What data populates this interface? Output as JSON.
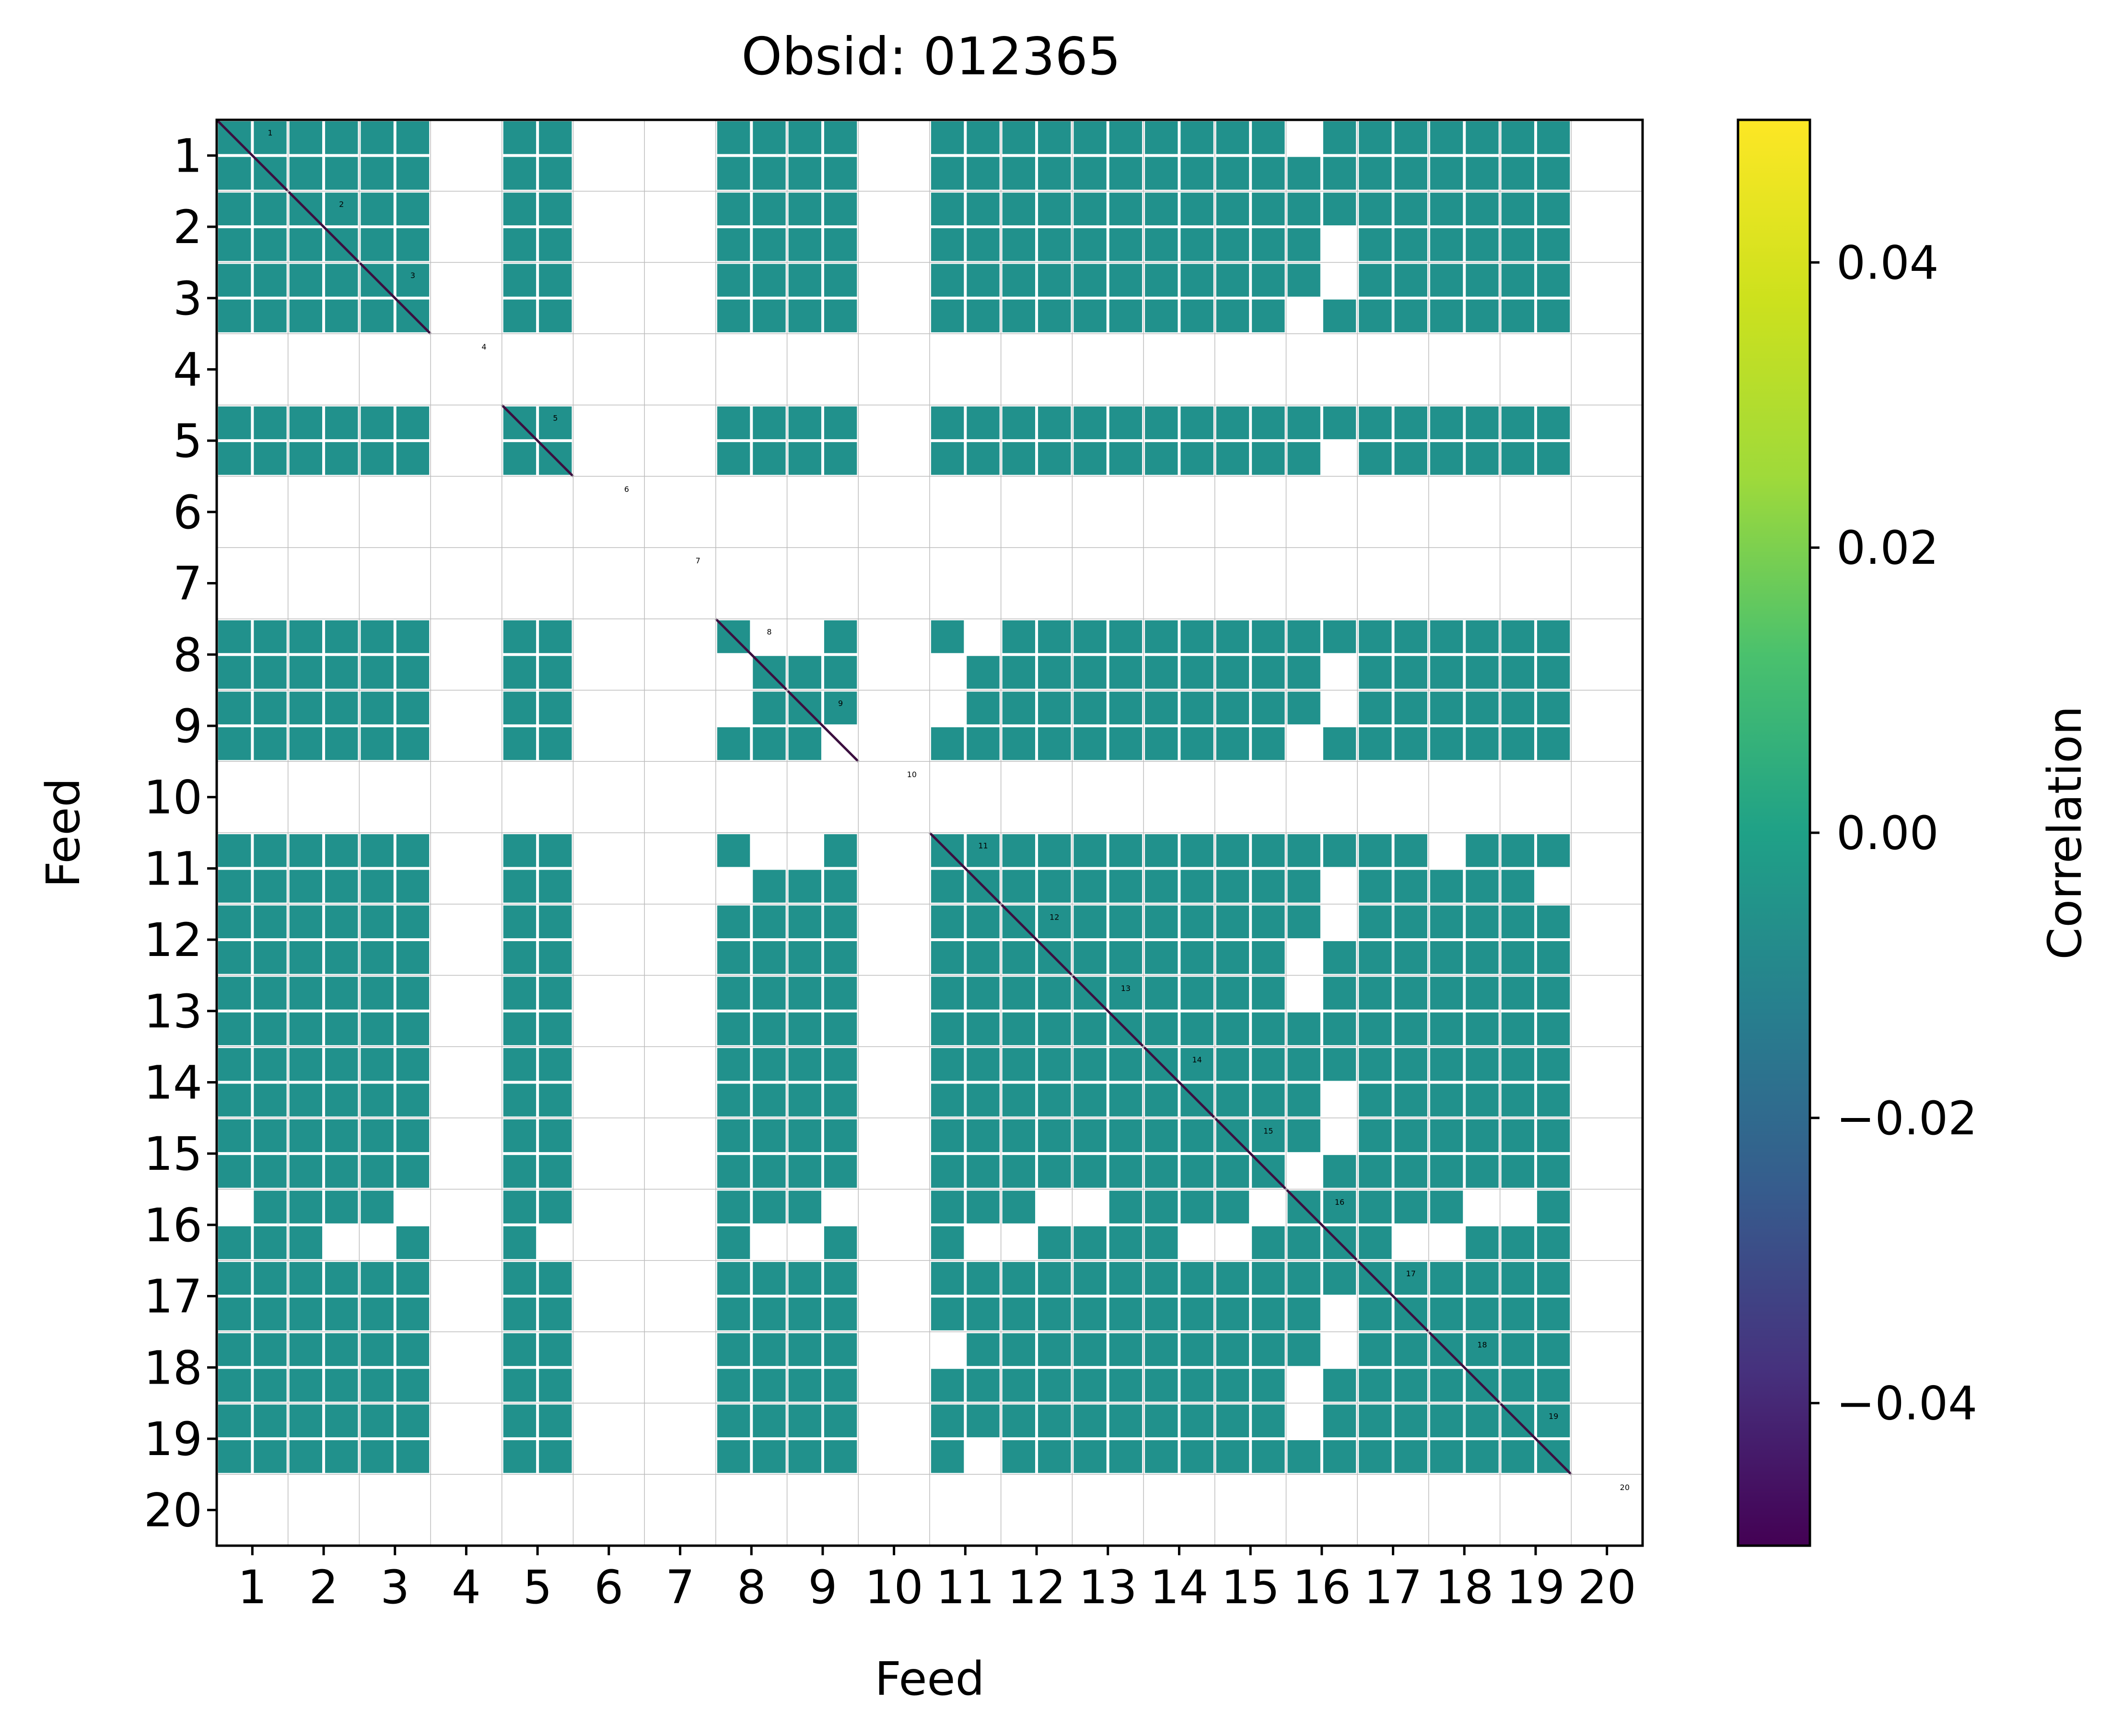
{
  "chart_data": {
    "type": "heatmap",
    "title": "Obsid: 012365",
    "xlabel": "Feed",
    "ylabel": "Feed",
    "x_ticks": [
      "1",
      "2",
      "3",
      "4",
      "5",
      "6",
      "7",
      "8",
      "9",
      "10",
      "11",
      "12",
      "13",
      "14",
      "15",
      "16",
      "17",
      "18",
      "19",
      "20"
    ],
    "y_ticks": [
      "1",
      "2",
      "3",
      "4",
      "5",
      "6",
      "7",
      "8",
      "9",
      "10",
      "11",
      "12",
      "13",
      "14",
      "15",
      "16",
      "17",
      "18",
      "19",
      "20"
    ],
    "feeds": [
      1,
      2,
      3,
      4,
      5,
      6,
      7,
      8,
      9,
      10,
      11,
      12,
      13,
      14,
      15,
      16,
      17,
      18,
      19,
      20
    ],
    "feeds_present": [
      1,
      2,
      3,
      5,
      8,
      9,
      11,
      12,
      13,
      14,
      15,
      16,
      17,
      18,
      19
    ],
    "feeds_masked": [
      4,
      6,
      7,
      10,
      20
    ],
    "cell_value": 0.0,
    "diagonal_value": -0.05,
    "partial_masks": [
      {
        "rows": [
          8,
          9
        ],
        "cols": [
          8,
          9,
          11
        ],
        "note": "blocks partially masked"
      },
      {
        "rows": [
          11
        ],
        "cols": [
          8,
          9,
          18,
          19
        ],
        "note": "blocks partially masked"
      },
      {
        "rows": [
          16
        ],
        "cols": [
          1,
          2,
          3,
          5,
          8,
          9,
          11,
          12,
          13,
          14,
          15,
          17,
          18,
          19
        ],
        "note": "many sideband rows masked"
      },
      {
        "rows": [
          19
        ],
        "cols": [
          11
        ],
        "note": "block masked"
      }
    ],
    "diagonal_labels": [
      "1",
      "2",
      "3",
      "4",
      "5",
      "6",
      "7",
      "8",
      "9",
      "10",
      "11",
      "12",
      "13",
      "14",
      "15",
      "16",
      "17",
      "18",
      "19",
      "20"
    ],
    "colorbar": {
      "label": "Correlation",
      "vmin": -0.05,
      "vmax": 0.05,
      "ticks": [
        -0.04,
        -0.02,
        0.0,
        0.02,
        0.04
      ],
      "tick_labels": [
        "−0.04",
        "−0.02",
        "0.00",
        "0.02",
        "0.04"
      ],
      "colormap": "viridis"
    },
    "colors": {
      "cell": "#21918c",
      "diagonal": "#3b0f3f",
      "grid": "#bdbdbd"
    }
  }
}
